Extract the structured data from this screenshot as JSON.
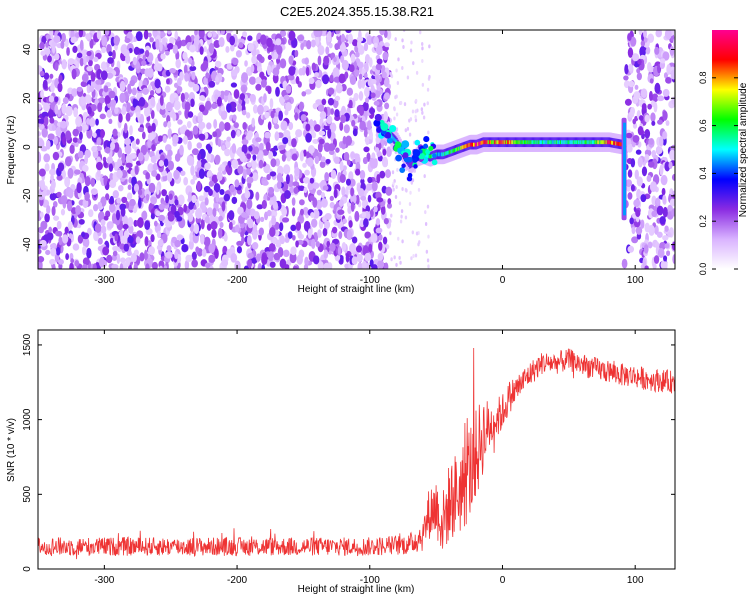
{
  "title": "C2E5.2024.355.15.38.R21",
  "colors": {
    "line": "#ee3333",
    "axis": "#000000",
    "background": "#ffffff"
  },
  "chart_data": [
    {
      "type": "heatmap",
      "xlabel": "Height of straight line (km)",
      "ylabel": "Frequency (Hz)",
      "xlim": [
        -350,
        130
      ],
      "ylim": [
        -50,
        48
      ],
      "x_ticks": [
        -300,
        -200,
        -100,
        0,
        100
      ],
      "y_ticks": [
        -40,
        -20,
        0,
        20,
        40
      ],
      "colorbar": {
        "label": "Normalized spectral amplitude",
        "range": [
          0,
          1
        ],
        "ticks": [
          "0.0",
          "0.2",
          "0.4",
          "0.6",
          "0.8"
        ],
        "colormap": [
          "#ffffff",
          "#d9b3ff",
          "#8a2be2",
          "#0000ff",
          "#00ffff",
          "#00ff00",
          "#ffff00",
          "#ff0000",
          "#ff0090"
        ]
      },
      "noise_region_x": [
        -350,
        -85
      ],
      "gap_region_x": [
        -85,
        92
      ],
      "noise_region_right_x": [
        92,
        130
      ],
      "signal_track": {
        "x": [
          -95,
          -90,
          -85,
          -80,
          -75,
          -70,
          -65,
          -60,
          -55,
          -50,
          -45,
          -40,
          -35,
          -30,
          -25,
          -20,
          -15,
          -10,
          -5,
          0,
          10,
          20,
          30,
          40,
          50,
          60,
          70,
          80,
          90
        ],
        "freq": [
          8,
          7,
          5,
          2,
          -3,
          -7,
          -4,
          -3,
          -4,
          -3,
          -3,
          -2,
          -1,
          0,
          1,
          1,
          2,
          2,
          2,
          2,
          2,
          2,
          2,
          2,
          2,
          2,
          2,
          2,
          1
        ],
        "amplitude": [
          0.3,
          0.4,
          0.45,
          0.5,
          0.45,
          0.35,
          0.45,
          0.5,
          0.55,
          0.5,
          0.5,
          0.6,
          0.6,
          0.75,
          0.8,
          0.9,
          0.9,
          0.75,
          0.8,
          0.85,
          0.65,
          0.6,
          0.55,
          0.55,
          0.55,
          0.55,
          0.6,
          0.85,
          0.9
        ]
      },
      "spike": {
        "x": 92,
        "freq_range": [
          -30,
          12
        ]
      }
    },
    {
      "type": "line",
      "xlabel": "Height of straight line (km)",
      "ylabel": "SNR (10 * v/v)",
      "xlim": [
        -350,
        130
      ],
      "ylim": [
        0,
        1600
      ],
      "x_ticks": [
        -300,
        -200,
        -100,
        0,
        100
      ],
      "y_ticks": [
        0,
        500,
        1000,
        1500
      ],
      "series": [
        {
          "x": [
            -350,
            -300,
            -250,
            -200,
            -150,
            -100,
            -70,
            -60,
            -55,
            -50,
            -45,
            -40,
            -35,
            -30,
            -25,
            -20,
            -15,
            -10,
            -5,
            0,
            5,
            10,
            20,
            30,
            40,
            50,
            60,
            70,
            80,
            90,
            100,
            110,
            120,
            130
          ],
          "y": [
            150,
            150,
            150,
            150,
            150,
            150,
            165,
            230,
            380,
            420,
            300,
            450,
            500,
            550,
            650,
            750,
            900,
            950,
            1000,
            1050,
            1150,
            1200,
            1300,
            1380,
            1380,
            1400,
            1370,
            1340,
            1320,
            1300,
            1290,
            1270,
            1260,
            1250
          ],
          "spread": [
            90,
            90,
            90,
            90,
            90,
            90,
            100,
            160,
            260,
            300,
            320,
            380,
            420,
            450,
            480,
            450,
            400,
            250,
            200,
            180,
            160,
            140,
            120,
            110,
            110,
            110,
            110,
            110,
            110,
            110,
            110,
            110,
            110,
            110
          ]
        }
      ]
    }
  ]
}
